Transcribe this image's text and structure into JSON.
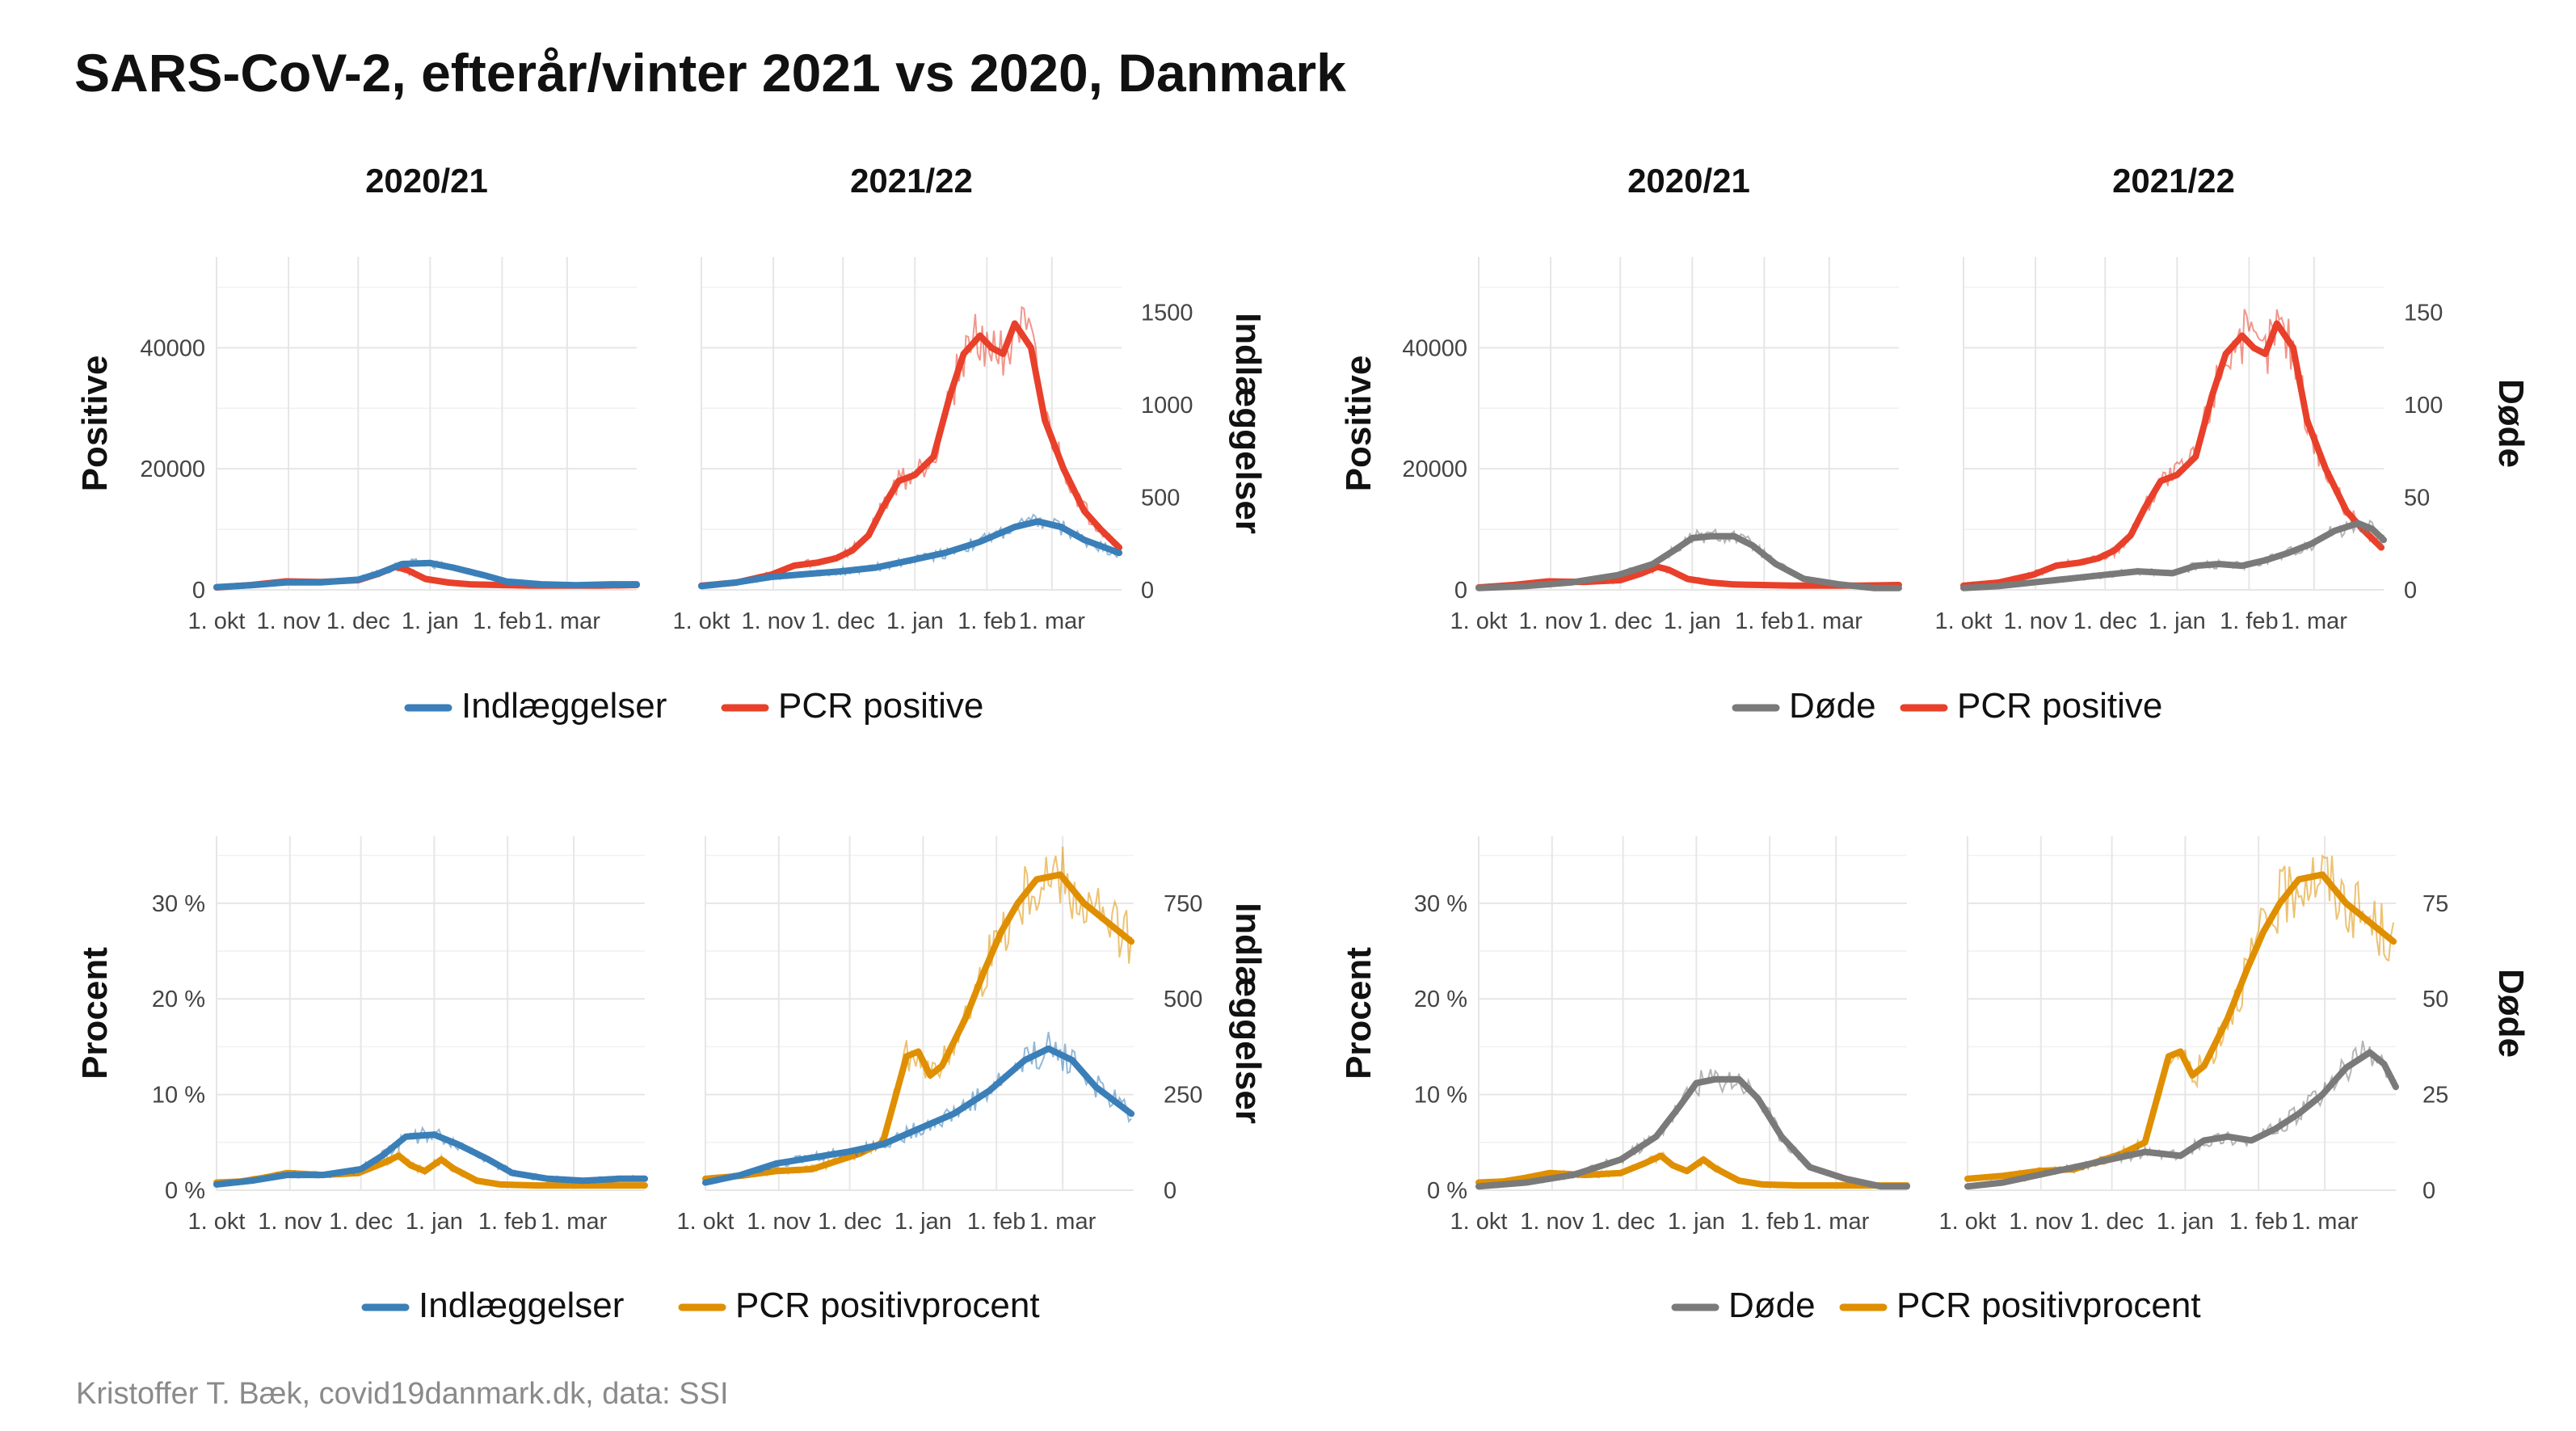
{
  "title": "SARS-CoV-2, efterår/vinter 2021 vs 2020, Danmark",
  "caption": "Kristoffer T. Bæk, covid19danmark.dk, data: SSI",
  "colors": {
    "indlaeggelser": "#3a7fb8",
    "pcr_positive": "#e8402a",
    "doede": "#7a7a7a",
    "pcr_positivprocent": "#df8f00",
    "grid": "#e6e6e6"
  },
  "chart_data": [
    {
      "id": "positive-indlaeggelser",
      "type": "line",
      "facets": [
        "2020/21",
        "2021/22"
      ],
      "x_ticks": [
        "1. okt",
        "1. nov",
        "1. dec",
        "1. jan",
        "1. feb",
        "1. mar"
      ],
      "x_range_days_from_1_okt": [
        0,
        181
      ],
      "left_axis": {
        "label": "Positive",
        "range": [
          0,
          55000
        ],
        "ticks": [
          "0",
          "20000",
          "40000"
        ],
        "tick_values": [
          0,
          20000,
          40000
        ]
      },
      "right_axis": {
        "label": "Indlæggelser",
        "range": [
          0,
          1800
        ],
        "ticks": [
          "0",
          "500",
          "1000",
          "1500"
        ],
        "tick_values": [
          0,
          500,
          1000,
          1500
        ]
      },
      "legend": [
        "Indlæggelser",
        "PCR positive"
      ],
      "series": [
        {
          "name": "PCR positive",
          "axis": "left",
          "color_key": "pcr_positive",
          "x": [
            0,
            15,
            30,
            45,
            61,
            70,
            77,
            82,
            90,
            100,
            110,
            122,
            135,
            152,
            165,
            181
          ],
          "y2020": [
            400,
            800,
            1400,
            1300,
            1600,
            2700,
            3800,
            3300,
            1800,
            1200,
            900,
            800,
            700,
            700,
            700,
            800
          ]
        },
        {
          "name": "Indlæggelser",
          "axis": "right",
          "color_key": "indlaeggelser",
          "x": [
            0,
            15,
            30,
            45,
            61,
            70,
            80,
            92,
            102,
            115,
            125,
            140,
            155,
            170,
            181
          ],
          "y2020": [
            15,
            25,
            40,
            40,
            55,
            90,
            140,
            145,
            120,
            80,
            45,
            30,
            25,
            30,
            30
          ]
        },
        {
          "name": "PCR positive",
          "axis": "left",
          "color_key": "pcr_positive",
          "x": [
            0,
            15,
            30,
            40,
            50,
            58,
            65,
            72,
            78,
            85,
            92,
            100,
            107,
            113,
            120,
            125,
            130,
            135,
            142,
            148,
            156,
            165,
            172,
            180
          ],
          "y2021": [
            700,
            1200,
            2500,
            4000,
            4500,
            5200,
            6500,
            9000,
            13500,
            18000,
            19000,
            22000,
            32000,
            39000,
            42000,
            40000,
            39000,
            44000,
            40000,
            28000,
            20000,
            13000,
            10000,
            7000
          ]
        },
        {
          "name": "Indlæggelser",
          "axis": "right",
          "color_key": "indlaeggelser",
          "x": [
            0,
            15,
            30,
            45,
            60,
            75,
            90,
            105,
            120,
            135,
            145,
            155,
            165,
            180
          ],
          "y2021": [
            20,
            40,
            70,
            85,
            100,
            120,
            160,
            200,
            260,
            340,
            370,
            340,
            270,
            200
          ]
        }
      ]
    },
    {
      "id": "positive-doede",
      "type": "line",
      "facets": [
        "2020/21",
        "2021/22"
      ],
      "x_ticks": [
        "1. okt",
        "1. nov",
        "1. dec",
        "1. jan",
        "1. feb",
        "1. mar"
      ],
      "x_range_days_from_1_okt": [
        0,
        181
      ],
      "left_axis": {
        "label": "Positive",
        "range": [
          0,
          55000
        ],
        "ticks": [
          "0",
          "20000",
          "40000"
        ],
        "tick_values": [
          0,
          20000,
          40000
        ]
      },
      "right_axis": {
        "label": "Døde",
        "range": [
          0,
          180
        ],
        "ticks": [
          "0",
          "50",
          "100",
          "150"
        ],
        "tick_values": [
          0,
          50,
          100,
          150
        ]
      },
      "legend": [
        "Døde",
        "PCR positive"
      ],
      "series": [
        {
          "name": "PCR positive",
          "axis": "left",
          "color_key": "pcr_positive",
          "x": [
            0,
            15,
            30,
            45,
            61,
            70,
            77,
            82,
            90,
            100,
            110,
            122,
            135,
            152,
            165,
            181
          ],
          "y2020": [
            400,
            800,
            1400,
            1300,
            1600,
            2700,
            3800,
            3300,
            1800,
            1200,
            900,
            800,
            700,
            700,
            700,
            800
          ]
        },
        {
          "name": "Døde",
          "axis": "right",
          "color_key": "doede",
          "x": [
            0,
            20,
            40,
            60,
            75,
            85,
            92,
            100,
            110,
            118,
            128,
            140,
            155,
            170,
            181
          ],
          "y2020": [
            1,
            2,
            4,
            8,
            14,
            22,
            28,
            29,
            29,
            24,
            14,
            6,
            3,
            1,
            1
          ]
        },
        {
          "name": "PCR positive",
          "axis": "left",
          "color_key": "pcr_positive",
          "x": [
            0,
            15,
            30,
            40,
            50,
            58,
            65,
            72,
            78,
            85,
            92,
            100,
            107,
            113,
            120,
            125,
            130,
            135,
            142,
            148,
            156,
            165,
            172,
            180
          ],
          "y2021": [
            700,
            1200,
            2500,
            4000,
            4500,
            5200,
            6500,
            9000,
            13500,
            18000,
            19000,
            22000,
            32000,
            39000,
            42000,
            40000,
            39000,
            44000,
            40000,
            28000,
            20000,
            13000,
            10000,
            7000
          ]
        },
        {
          "name": "Døde",
          "axis": "right",
          "color_key": "doede",
          "x": [
            0,
            15,
            30,
            45,
            60,
            75,
            90,
            100,
            110,
            120,
            130,
            140,
            150,
            160,
            170,
            176,
            181
          ],
          "y2021": [
            1,
            2,
            4,
            6,
            8,
            10,
            9,
            13,
            14,
            13,
            16,
            20,
            25,
            32,
            36,
            33,
            27
          ]
        }
      ]
    },
    {
      "id": "procent-indlaeggelser",
      "type": "line",
      "facets": [
        "2020/21",
        "2021/22"
      ],
      "x_ticks": [
        "1. okt",
        "1. nov",
        "1. dec",
        "1. jan",
        "1. feb",
        "1. mar"
      ],
      "x_range_days_from_1_okt": [
        0,
        181
      ],
      "left_axis": {
        "label": "Procent",
        "range": [
          0,
          37
        ],
        "ticks": [
          "0 %",
          "10 %",
          "20 %",
          "30 %"
        ],
        "tick_values": [
          0,
          10,
          20,
          30
        ]
      },
      "right_axis": {
        "label": "Indlæggelser",
        "range": [
          0,
          925
        ],
        "ticks": [
          "0",
          "250",
          "500",
          "750"
        ],
        "tick_values": [
          0,
          250,
          500,
          750
        ]
      },
      "legend": [
        "Indlæggelser",
        "PCR positivprocent"
      ],
      "series": [
        {
          "name": "PCR positivprocent",
          "axis": "left",
          "color_key": "pcr_positivprocent",
          "x": [
            0,
            10,
            20,
            30,
            45,
            60,
            70,
            77,
            82,
            88,
            95,
            100,
            110,
            120,
            135,
            150,
            165,
            181
          ],
          "y2020": [
            0.8,
            0.9,
            1.3,
            1.8,
            1.6,
            1.8,
            2.8,
            3.6,
            2.6,
            2.0,
            3.2,
            2.3,
            1.0,
            0.6,
            0.5,
            0.5,
            0.5,
            0.5
          ]
        },
        {
          "name": "Indlæggelser",
          "axis": "right",
          "color_key": "indlaeggelser",
          "x": [
            0,
            15,
            30,
            45,
            61,
            70,
            80,
            92,
            102,
            115,
            125,
            140,
            155,
            170,
            181
          ],
          "y2020": [
            15,
            25,
            40,
            40,
            55,
            90,
            140,
            145,
            120,
            80,
            45,
            30,
            25,
            30,
            30
          ]
        },
        {
          "name": "PCR positivprocent",
          "axis": "left",
          "color_key": "pcr_positivprocent",
          "x": [
            0,
            15,
            30,
            45,
            55,
            65,
            75,
            85,
            90,
            95,
            100,
            110,
            118,
            125,
            132,
            140,
            150,
            160,
            170,
            180
          ],
          "y2021": [
            1.2,
            1.5,
            2.0,
            2.2,
            3.0,
            3.8,
            5.0,
            14.0,
            14.5,
            12.0,
            13.0,
            18.0,
            23.0,
            27.0,
            30.0,
            32.5,
            33.0,
            30.0,
            28.0,
            26.0
          ]
        },
        {
          "name": "Indlæggelser",
          "axis": "right",
          "color_key": "indlaeggelser",
          "x": [
            0,
            15,
            30,
            45,
            60,
            75,
            90,
            105,
            120,
            135,
            145,
            155,
            165,
            180
          ],
          "y2021": [
            20,
            40,
            70,
            85,
            100,
            120,
            160,
            200,
            260,
            340,
            370,
            340,
            270,
            200
          ]
        }
      ]
    },
    {
      "id": "procent-doede",
      "type": "line",
      "facets": [
        "2020/21",
        "2021/22"
      ],
      "x_ticks": [
        "1. okt",
        "1. nov",
        "1. dec",
        "1. jan",
        "1. feb",
        "1. mar"
      ],
      "x_range_days_from_1_okt": [
        0,
        181
      ],
      "left_axis": {
        "label": "Procent",
        "range": [
          0,
          37
        ],
        "ticks": [
          "0 %",
          "10 %",
          "20 %",
          "30 %"
        ],
        "tick_values": [
          0,
          10,
          20,
          30
        ]
      },
      "right_axis": {
        "label": "Døde",
        "range": [
          0,
          92.5
        ],
        "ticks": [
          "0",
          "25",
          "50",
          "75"
        ],
        "tick_values": [
          0,
          25,
          50,
          75
        ]
      },
      "legend": [
        "Døde",
        "PCR positivprocent"
      ],
      "series": [
        {
          "name": "PCR positivprocent",
          "axis": "left",
          "color_key": "pcr_positivprocent",
          "x": [
            0,
            10,
            20,
            30,
            45,
            60,
            70,
            77,
            82,
            88,
            95,
            100,
            110,
            120,
            135,
            150,
            165,
            181
          ],
          "y2020": [
            0.8,
            0.9,
            1.3,
            1.8,
            1.6,
            1.8,
            2.8,
            3.6,
            2.6,
            2.0,
            3.2,
            2.3,
            1.0,
            0.6,
            0.5,
            0.5,
            0.5,
            0.5
          ]
        },
        {
          "name": "Døde",
          "axis": "right",
          "color_key": "doede",
          "x": [
            0,
            20,
            40,
            60,
            75,
            85,
            92,
            100,
            110,
            118,
            128,
            140,
            155,
            170,
            181
          ],
          "y2020": [
            1,
            2,
            4,
            8,
            14,
            22,
            28,
            29,
            29,
            24,
            14,
            6,
            3,
            1,
            1
          ]
        },
        {
          "name": "PCR positivprocent",
          "axis": "left",
          "color_key": "pcr_positivprocent",
          "x": [
            0,
            15,
            30,
            45,
            55,
            65,
            75,
            85,
            90,
            95,
            100,
            110,
            118,
            125,
            132,
            140,
            150,
            160,
            170,
            180
          ],
          "y2021": [
            1.2,
            1.5,
            2.0,
            2.2,
            3.0,
            3.8,
            5.0,
            14.0,
            14.5,
            12.0,
            13.0,
            18.0,
            23.0,
            27.0,
            30.0,
            32.5,
            33.0,
            30.0,
            28.0,
            26.0
          ]
        },
        {
          "name": "Døde",
          "axis": "right",
          "color_key": "doede",
          "x": [
            0,
            15,
            30,
            45,
            60,
            75,
            90,
            100,
            110,
            120,
            130,
            140,
            150,
            160,
            170,
            176,
            181
          ],
          "y2021": [
            1,
            2,
            4,
            6,
            8,
            10,
            9,
            13,
            14,
            13,
            16,
            20,
            25,
            32,
            36,
            33,
            27
          ]
        }
      ]
    }
  ]
}
